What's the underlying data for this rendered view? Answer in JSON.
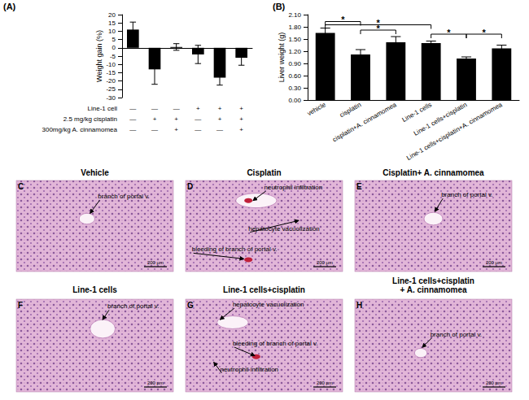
{
  "chart_data": [
    {
      "type": "bar",
      "panel_label": "(A)",
      "y_label": "Weight gain (%)",
      "categories": [
        null,
        null,
        null,
        null,
        null,
        null
      ],
      "values": [
        11,
        -13,
        0.5,
        -4,
        -18,
        -6
      ],
      "errors": [
        4.5,
        9,
        2,
        5.5,
        4.5,
        4.5
      ],
      "color": "#000000",
      "ylim": [
        -30,
        20
      ],
      "yticks": [
        -30,
        -25,
        -20,
        -15,
        -10,
        -5,
        0,
        5,
        10,
        15,
        20
      ],
      "grid": false,
      "tick_labels": "y",
      "condition_rows": [
        {
          "label": "Line-1 cell",
          "marks": [
            "—",
            "—",
            "—",
            "+",
            "+",
            "+"
          ]
        },
        {
          "label": "2.5 mg/kg cisplatin",
          "marks": [
            "—",
            "+",
            "+",
            "—",
            "+",
            "+"
          ]
        },
        {
          "label": "300mg/kg A. cinnamomea",
          "marks": [
            "—",
            "—",
            "+",
            "—",
            "—",
            "+"
          ]
        }
      ]
    },
    {
      "type": "bar",
      "panel_label": "(B)",
      "y_label": "Liver weight (g)",
      "categories": [
        "vehicle",
        "cisplatin",
        "cisplatin+A. cinnamomea",
        "Line-1 cells",
        "Line-1 cells+cisplatin",
        "Line-1 cells+cisplatin+A. cinnamomea"
      ],
      "values": [
        1.65,
        1.12,
        1.42,
        1.4,
        1.02,
        1.27
      ],
      "errors": [
        0.12,
        0.12,
        0.14,
        0.05,
        0.04,
        0.08
      ],
      "color": "#000000",
      "ylim": [
        0,
        2.1
      ],
      "yticks": [
        {
          "value": 0,
          "label": "0.00"
        },
        {
          "value": 0.3,
          "label": "0.30"
        },
        {
          "value": 0.6,
          "label": "0.60"
        },
        {
          "value": 0.9,
          "label": "0.90"
        },
        {
          "value": 1.2,
          "label": "1.20"
        },
        {
          "value": 1.5,
          "label": "1.50"
        },
        {
          "value": 1.8,
          "label": "1.80"
        },
        {
          "value": 2.1,
          "label": "2.10"
        }
      ],
      "grid": false,
      "significance": [
        {
          "from": 0,
          "to": 1,
          "y": 1.93,
          "label": "*"
        },
        {
          "from": 1,
          "to": 2,
          "y": 1.72,
          "label": "*"
        },
        {
          "from": 0,
          "to": 3,
          "y": 1.85,
          "label": "*"
        },
        {
          "from": 3,
          "to": 4,
          "y": 1.62,
          "label": "*"
        },
        {
          "from": 4,
          "to": 5,
          "y": 1.62,
          "label": "*"
        }
      ]
    }
  ],
  "panels": [
    {
      "letter": "C",
      "title": "Vehicle",
      "annotations": [
        "branch of portal v."
      ]
    },
    {
      "letter": "D",
      "title": "Cisplatin",
      "annotations": [
        "neutrophil infiltration",
        "hepatocyte vacuolization",
        "bleeding of branch of portal v."
      ]
    },
    {
      "letter": "E",
      "title": "Cisplatin+ A. cinnamomea",
      "annotations": [
        "branch of portal v."
      ]
    },
    {
      "letter": "F",
      "title": "Line-1 cells",
      "annotations": [
        "branch of portal v."
      ]
    },
    {
      "letter": "G",
      "title": "Line-1 cells+cisplatin",
      "annotations": [
        "hepatocyte vacuolization",
        "bleeding of branch of portal v.",
        "neutrophil infiltration"
      ]
    },
    {
      "letter": "H",
      "title": "Line-1 cells+cisplatin\n+ A. cinnamomea",
      "annotations": [
        "branch of portal v."
      ]
    }
  ],
  "scale_bar": "200 μm"
}
